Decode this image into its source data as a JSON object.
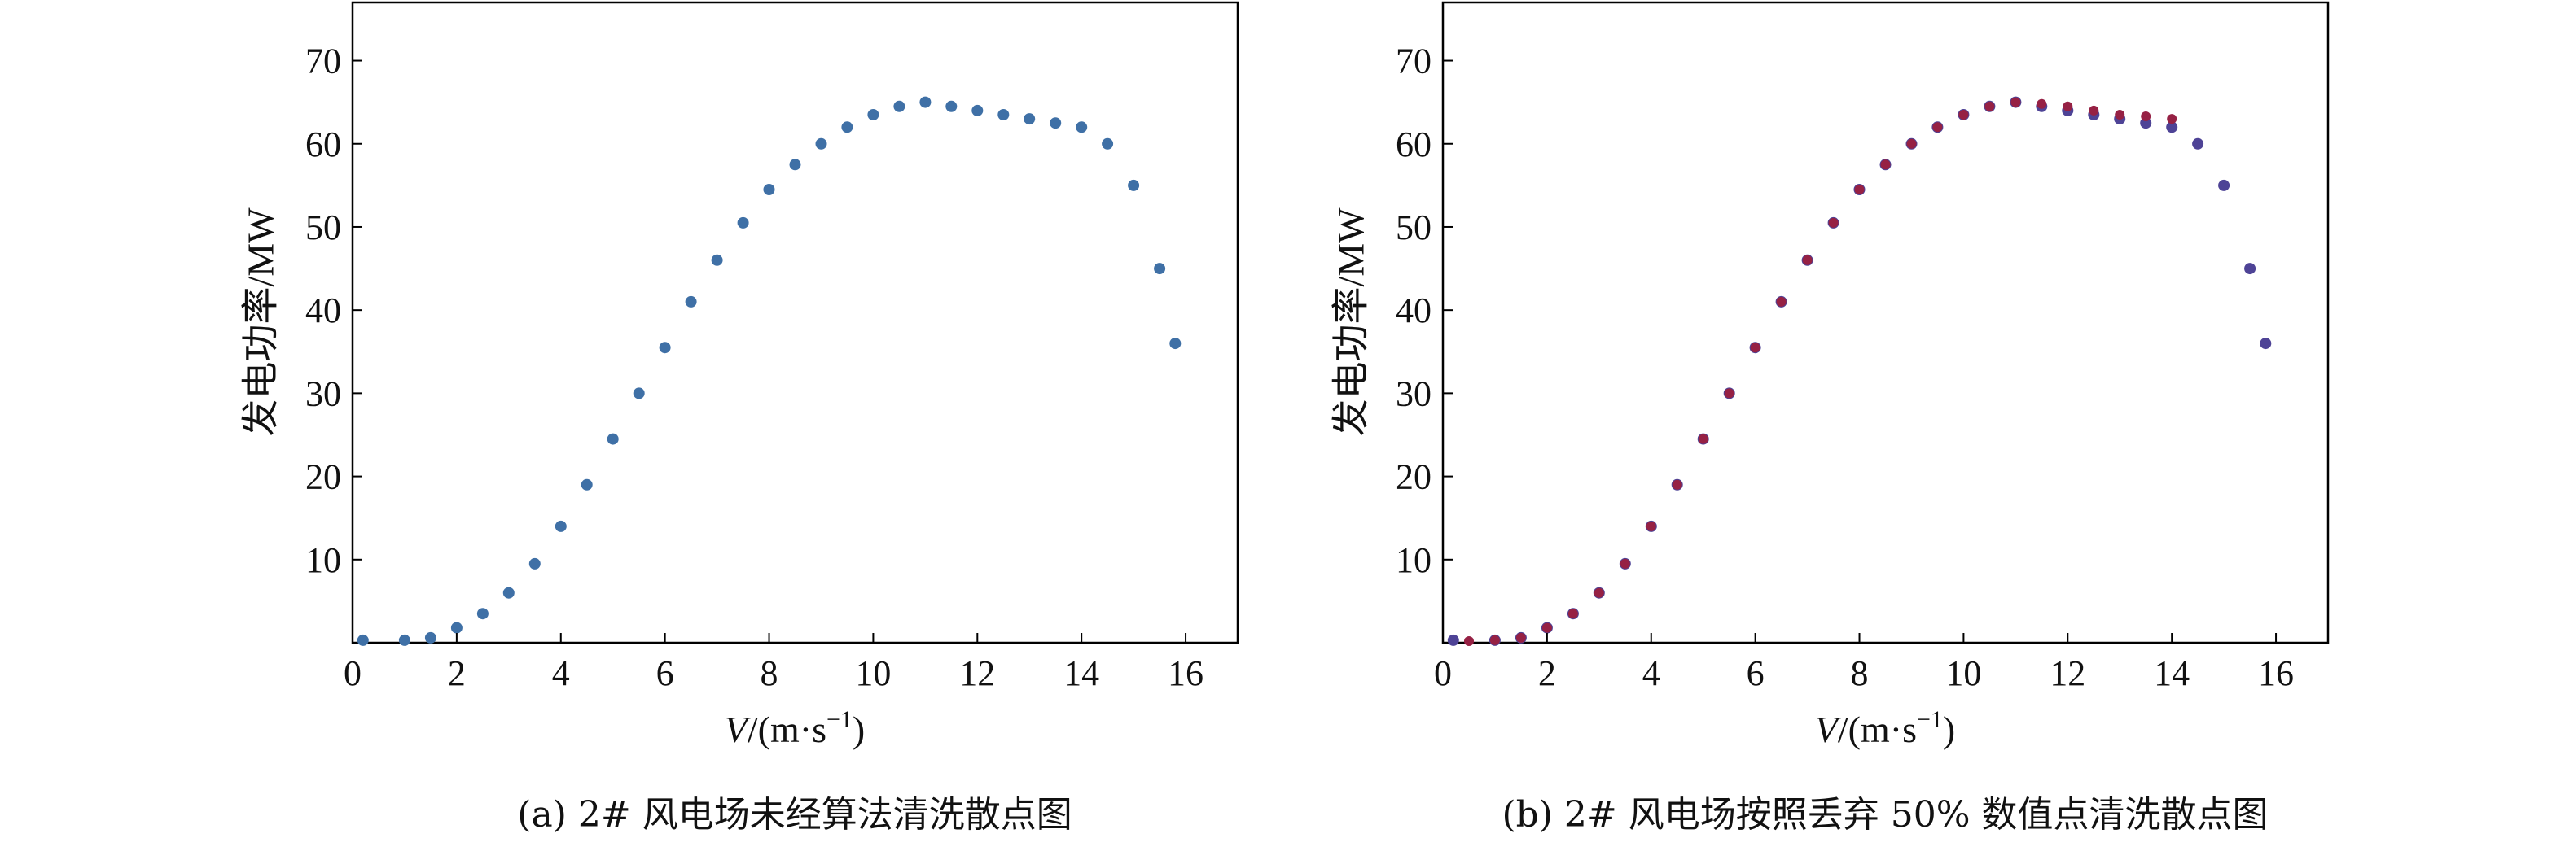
{
  "figure": {
    "panels": [
      {
        "caption": "(a) 2# 风电场未经算法清洗散点图",
        "ylabel": "发电功率/MW",
        "xlabel_var": "V",
        "xlabel_unit": "/(m·s",
        "xlabel_exp": "−1",
        "xlabel_close": ")",
        "raw_color": "#3f70a6",
        "clean_color": ""
      },
      {
        "caption": "(b) 2# 风电场按照丢弃 50% 数值点清洗散点图",
        "ylabel": "发电功率/MW",
        "xlabel_var": "V",
        "xlabel_unit": "/(m·s",
        "xlabel_exp": "−1",
        "xlabel_close": ")",
        "raw_color": "#4e4396",
        "clean_color": "#962144"
      }
    ]
  },
  "chart_data": [
    {
      "type": "scatter",
      "series": [
        {
          "x": [
            0.2,
            1.0,
            1.5,
            2.0,
            2.5,
            3.0,
            3.5,
            4.0,
            4.5,
            5.0,
            5.5,
            6.0,
            6.5,
            7.0,
            7.5,
            8.0,
            8.5,
            9.0,
            9.5,
            10.0,
            10.5,
            11.0,
            11.5,
            12.0,
            12.5,
            13.0,
            13.5,
            14.0,
            14.5,
            15.0,
            15.5,
            15.8
          ],
          "y": [
            0.3,
            0.3,
            0.6,
            1.8,
            3.5,
            6.0,
            9.5,
            14.0,
            19.0,
            24.5,
            30.0,
            35.5,
            41.0,
            46.0,
            50.5,
            54.5,
            57.5,
            60.0,
            62.0,
            63.5,
            64.5,
            65.0,
            64.5,
            64.0,
            63.5,
            63.0,
            62.5,
            62.0,
            60.0,
            55.0,
            45.0,
            36.0
          ]
        }
      ],
      "xlim": [
        0,
        17
      ],
      "ylim": [
        0,
        77
      ],
      "xticks": [
        0,
        2,
        4,
        6,
        8,
        10,
        12,
        14,
        16
      ],
      "yticks": [
        10,
        20,
        30,
        40,
        50,
        60,
        70
      ],
      "grid": false
    },
    {
      "type": "scatter",
      "series": [
        {
          "x": [
            0.2,
            1.0,
            1.5,
            2.0,
            2.5,
            3.0,
            3.5,
            4.0,
            4.5,
            5.0,
            5.5,
            6.0,
            6.5,
            7.0,
            7.5,
            8.0,
            8.5,
            9.0,
            9.5,
            10.0,
            10.5,
            11.0,
            11.5,
            12.0,
            12.5,
            13.0,
            13.5,
            14.0,
            14.5,
            15.0,
            15.5,
            15.8
          ],
          "y": [
            0.3,
            0.3,
            0.6,
            1.8,
            3.5,
            6.0,
            9.5,
            14.0,
            19.0,
            24.5,
            30.0,
            35.5,
            41.0,
            46.0,
            50.5,
            54.5,
            57.5,
            60.0,
            62.0,
            63.5,
            64.5,
            65.0,
            64.5,
            64.0,
            63.5,
            63.0,
            62.5,
            62.0,
            60.0,
            55.0,
            45.0,
            36.0
          ]
        },
        {
          "x": [
            0.5,
            1.0,
            1.5,
            2.0,
            2.5,
            3.0,
            3.5,
            4.0,
            4.5,
            5.0,
            5.5,
            6.0,
            6.5,
            7.0,
            7.5,
            8.0,
            8.5,
            9.0,
            9.5,
            10.0,
            10.5,
            11.0,
            11.5,
            12.0,
            12.5,
            13.0,
            13.5,
            14.0
          ],
          "y": [
            0.2,
            0.3,
            0.6,
            1.8,
            3.5,
            6.0,
            9.5,
            14.0,
            19.0,
            24.5,
            30.0,
            35.5,
            41.0,
            46.0,
            50.5,
            54.5,
            57.5,
            60.0,
            62.0,
            63.5,
            64.5,
            65.0,
            64.8,
            64.5,
            64.0,
            63.5,
            63.3,
            63.0
          ]
        }
      ],
      "xlim": [
        0,
        17
      ],
      "ylim": [
        0,
        77
      ],
      "xticks": [
        0,
        2,
        4,
        6,
        8,
        10,
        12,
        14,
        16
      ],
      "yticks": [
        10,
        20,
        30,
        40,
        50,
        60,
        70
      ],
      "grid": false
    }
  ]
}
